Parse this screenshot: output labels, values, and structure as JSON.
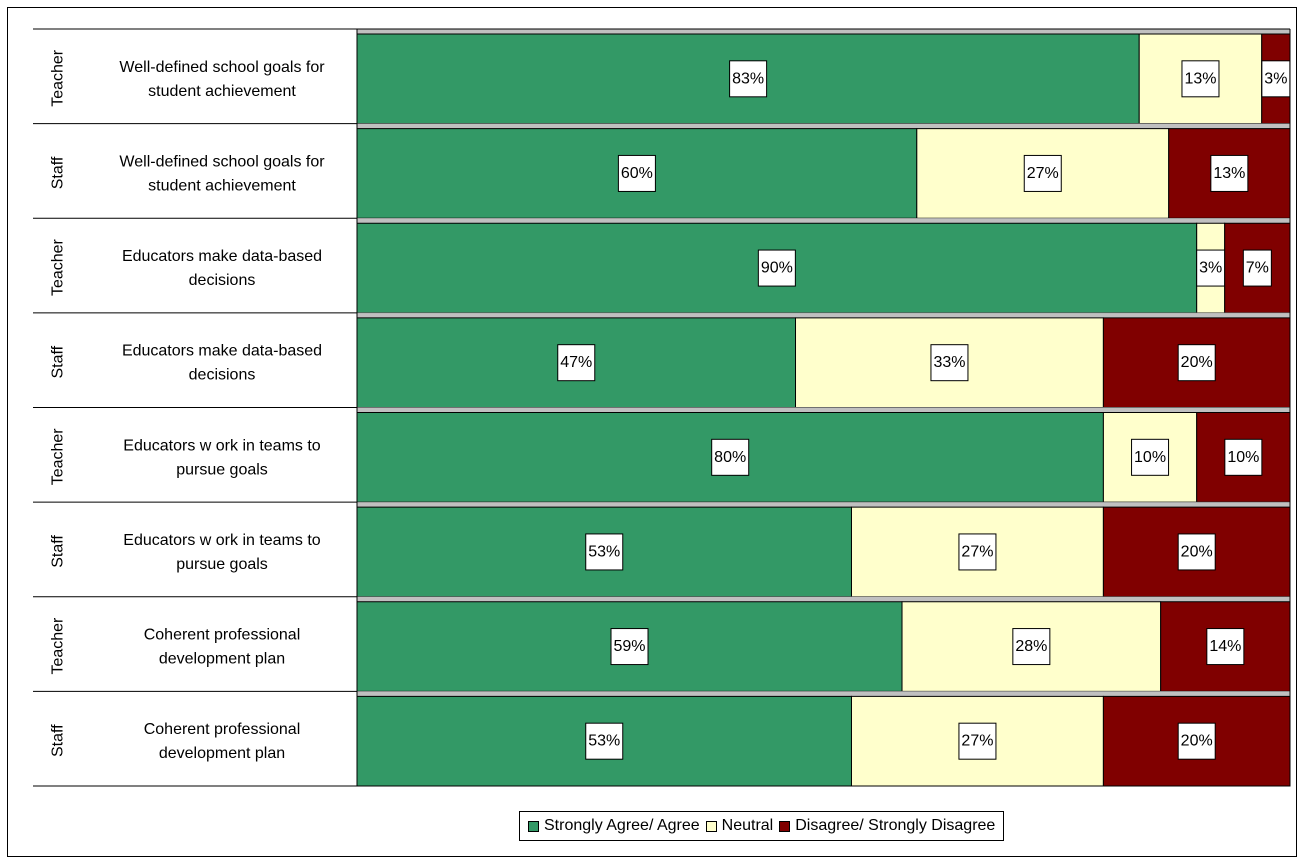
{
  "chart_data": {
    "type": "bar",
    "orientation": "horizontal",
    "stacked": true,
    "percent_stacked": true,
    "grid": false,
    "legend_position": "bottom",
    "rows": [
      {
        "group": "Teacher",
        "label": [
          "Well-defined school goals for",
          "student achievement"
        ],
        "values": [
          83,
          13,
          3
        ],
        "labels": [
          "83%",
          "13%",
          "3%"
        ]
      },
      {
        "group": "Staff",
        "label": [
          "Well-defined school goals for",
          "student achievement"
        ],
        "values": [
          60,
          27,
          13
        ],
        "labels": [
          "60%",
          "27%",
          "13%"
        ]
      },
      {
        "group": "Teacher",
        "label": [
          "Educators make data-based",
          "decisions"
        ],
        "values": [
          90,
          3,
          7
        ],
        "labels": [
          "90%",
          "3%",
          "7%"
        ]
      },
      {
        "group": "Staff",
        "label": [
          "Educators make data-based",
          "decisions"
        ],
        "values": [
          47,
          33,
          20
        ],
        "labels": [
          "47%",
          "33%",
          "20%"
        ]
      },
      {
        "group": "Teacher",
        "label": [
          "Educators w ork in teams to",
          "pursue goals"
        ],
        "values": [
          80,
          10,
          10
        ],
        "labels": [
          "80%",
          "10%",
          "10%"
        ]
      },
      {
        "group": "Staff",
        "label": [
          "Educators w ork in teams to",
          "pursue goals"
        ],
        "values": [
          53,
          27,
          20
        ],
        "labels": [
          "53%",
          "27%",
          "20%"
        ]
      },
      {
        "group": "Teacher",
        "label": [
          "Coherent professional",
          "development plan"
        ],
        "values": [
          59,
          28,
          14
        ],
        "labels": [
          "59%",
          "28%",
          "14%"
        ]
      },
      {
        "group": "Staff",
        "label": [
          "Coherent professional",
          "development plan"
        ],
        "values": [
          53,
          27,
          20
        ],
        "labels": [
          "53%",
          "27%",
          "20%"
        ]
      }
    ],
    "series": [
      {
        "name": "Strongly Agree/ Agree",
        "color": "#339966"
      },
      {
        "name": "Neutral",
        "color": "#ffffcc"
      },
      {
        "name": "Disagree/ Strongly Disagree",
        "color": "#800000"
      }
    ]
  },
  "legend": {
    "agree": "Strongly Agree/ Agree",
    "neutral": "Neutral",
    "disagree": "Disagree/ Strongly Disagree"
  },
  "colors": {
    "agree": "#339966",
    "neutral": "#ffffcc",
    "disagree": "#800000",
    "separator": "#c0c0c0"
  }
}
